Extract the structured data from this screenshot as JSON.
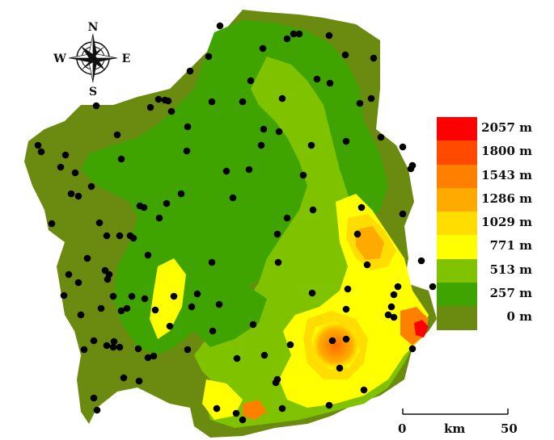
{
  "compass": {
    "icon": "compass-rose-icon",
    "north": "N",
    "south": "S",
    "east": "E",
    "west": "W"
  },
  "legend": {
    "items": [
      {
        "label": "2057 m",
        "color": "#ff0000"
      },
      {
        "label": "1800 m",
        "color": "#ff4a00"
      },
      {
        "label": "1543 m",
        "color": "#ff8000"
      },
      {
        "label": "1286 m",
        "color": "#ffaa00"
      },
      {
        "label": "1029 m",
        "color": "#ffdd00"
      },
      {
        "label": "771 m",
        "color": "#ffff00"
      },
      {
        "label": "513 m",
        "color": "#7fc300"
      },
      {
        "label": "257 m",
        "color": "#3fa300"
      },
      {
        "label": "0 m",
        "color": "#6b8a10"
      }
    ]
  },
  "scale_bar": {
    "start": "0",
    "unit": "km",
    "end": "50"
  },
  "colors": {
    "station_marker": "#000000"
  }
}
